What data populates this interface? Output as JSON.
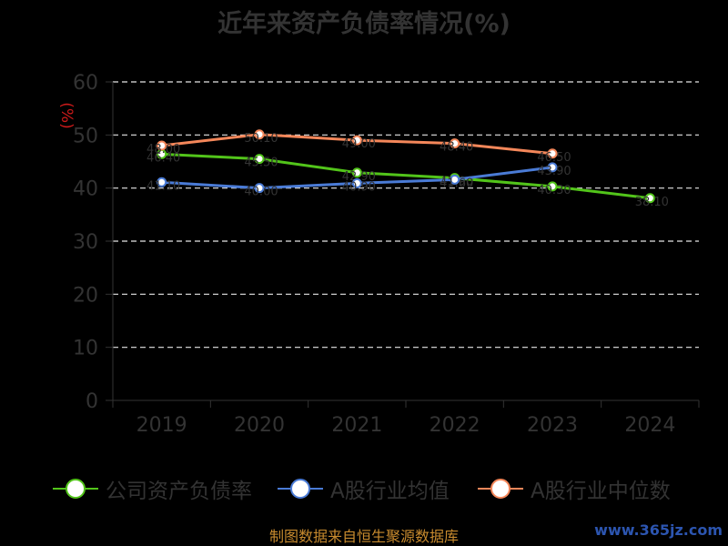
{
  "chart_data": {
    "type": "line",
    "title": "近年来资产负债率情况(%)",
    "ylabel": "(%)",
    "xlabel": "",
    "categories": [
      "2019",
      "2020",
      "2021",
      "2022",
      "2023",
      "2024"
    ],
    "ylim": [
      0,
      60
    ],
    "yticks": [
      0,
      10,
      20,
      30,
      40,
      50,
      60
    ],
    "grid": true,
    "legend_position": "bottom",
    "series": [
      {
        "name": "公司资产负债率",
        "color": "#52c41a",
        "values": [
          46.4,
          45.5,
          42.9,
          41.9,
          40.3,
          38.1
        ]
      },
      {
        "name": "A股行业均值",
        "color": "#4a7bd6",
        "values": [
          41.1,
          40.0,
          40.9,
          41.6,
          43.9,
          null
        ]
      },
      {
        "name": "A股行业中位数",
        "color": "#f4875a",
        "values": [
          48.0,
          50.1,
          49.0,
          48.4,
          46.5,
          null
        ]
      }
    ]
  },
  "footer": {
    "source": "制图数据来自恒生聚源数据库",
    "watermark": "www.365jz.com"
  }
}
